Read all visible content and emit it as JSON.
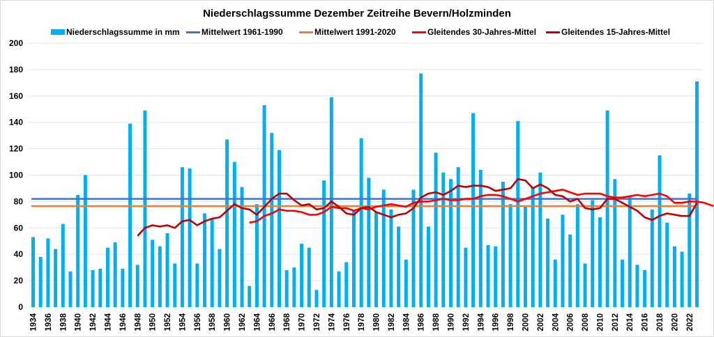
{
  "chart_data": {
    "type": "bar",
    "title": "Niederschlagssumme Dezember Zeitreihe Bevern/Holzminden",
    "xlabel": "",
    "ylabel": "",
    "ylim": [
      0,
      200
    ],
    "yticks": [
      0,
      20,
      40,
      60,
      80,
      100,
      120,
      140,
      160,
      180,
      200
    ],
    "grid": true,
    "legend_position": "top",
    "x": [
      1934,
      1935,
      1936,
      1937,
      1938,
      1939,
      1940,
      1941,
      1942,
      1943,
      1944,
      1945,
      1946,
      1947,
      1948,
      1949,
      1950,
      1951,
      1952,
      1953,
      1954,
      1955,
      1956,
      1957,
      1958,
      1959,
      1960,
      1961,
      1962,
      1963,
      1964,
      1965,
      1966,
      1967,
      1968,
      1969,
      1970,
      1971,
      1972,
      1973,
      1974,
      1975,
      1976,
      1977,
      1978,
      1979,
      1980,
      1981,
      1982,
      1983,
      1984,
      1985,
      1986,
      1987,
      1988,
      1989,
      1990,
      1991,
      1992,
      1993,
      1994,
      1995,
      1996,
      1997,
      1998,
      1999,
      2000,
      2001,
      2002,
      2003,
      2004,
      2005,
      2006,
      2007,
      2008,
      2009,
      2010,
      2011,
      2012,
      2013,
      2014,
      2015,
      2016,
      2017,
      2018,
      2019,
      2020,
      2021,
      2022,
      2023
    ],
    "xtick_labels": [
      "1934",
      "1936",
      "1938",
      "1940",
      "1942",
      "1944",
      "1946",
      "1948",
      "1950",
      "1952",
      "1954",
      "1956",
      "1958",
      "1960",
      "1962",
      "1964",
      "1966",
      "1968",
      "1970",
      "1972",
      "1974",
      "1976",
      "1978",
      "1980",
      "1982",
      "1984",
      "1986",
      "1988",
      "1990",
      "1992",
      "1994",
      "1996",
      "1998",
      "2000",
      "2002",
      "2004",
      "2006",
      "2008",
      "2010",
      "2012",
      "2014",
      "2016",
      "2018",
      "2020",
      "2022"
    ],
    "series": [
      {
        "name": "Niederschlagssumme in mm",
        "type": "bar",
        "color": "#00b0f0",
        "values": [
          53,
          38,
          52,
          44,
          63,
          27,
          85,
          100,
          28,
          29,
          45,
          49,
          29,
          139,
          32,
          149,
          51,
          46,
          56,
          33,
          106,
          105,
          33,
          71,
          67,
          44,
          127,
          110,
          91,
          16,
          78,
          153,
          132,
          119,
          28,
          30,
          48,
          45,
          13,
          96,
          159,
          27,
          34,
          74,
          128,
          98,
          72,
          89,
          74,
          61,
          36,
          89,
          177,
          61,
          117,
          102,
          97,
          106,
          45,
          147,
          104,
          47,
          46,
          95,
          78,
          141,
          76,
          91,
          102,
          67,
          36,
          70,
          55,
          78,
          33,
          81,
          68,
          149,
          97,
          36,
          84,
          32,
          28,
          74,
          115,
          64,
          46,
          42,
          86,
          171
        ]
      },
      {
        "name": "Mittelwert 1961-1990",
        "type": "hline",
        "color": "#4472c4",
        "value": 82
      },
      {
        "name": "Mittelwert 1991-2020",
        "type": "hline",
        "color": "#ed7d31",
        "value": 76.5
      },
      {
        "name": "Gleitendes 30-Jahres-Mittel",
        "type": "line",
        "color": "#ff0000",
        "start_year": 1963,
        "values": [
          64,
          65,
          69,
          71,
          74,
          73,
          73,
          72,
          70,
          70,
          72,
          76,
          75,
          75,
          73,
          75,
          74,
          76,
          77,
          78,
          77,
          76,
          79,
          80,
          80,
          81,
          82,
          81,
          81,
          82,
          82,
          84,
          85,
          85,
          84,
          82,
          80,
          82,
          84,
          86,
          87,
          88,
          89,
          87,
          85,
          86,
          86,
          86,
          84,
          83,
          83,
          84,
          85,
          84,
          85,
          86,
          84,
          79,
          79,
          80,
          80,
          79,
          77,
          76,
          74,
          75,
          77
        ]
      },
      {
        "name": "Gleitendes 15-Jahres-Mittel",
        "type": "line",
        "color": "#c00000",
        "start_year": 1948,
        "values": [
          54,
          60,
          62,
          61,
          62,
          60,
          65,
          66,
          62,
          65,
          67,
          68,
          73,
          78,
          75,
          74,
          70,
          76,
          82,
          86,
          86,
          81,
          77,
          78,
          74,
          75,
          80,
          76,
          71,
          70,
          75,
          76,
          72,
          70,
          68,
          70,
          71,
          75,
          83,
          86,
          87,
          85,
          88,
          92,
          91,
          92,
          92,
          91,
          88,
          89,
          90,
          97,
          96,
          90,
          93,
          90,
          85,
          84,
          80,
          82,
          75,
          74,
          75,
          82,
          82,
          79,
          76,
          73,
          68,
          66,
          69,
          71,
          70,
          69,
          69,
          79
        ]
      }
    ]
  },
  "legend": [
    {
      "label": "Niederschlagssumme in mm",
      "color": "#00b0f0",
      "kind": "box"
    },
    {
      "label": "Mittelwert 1961-1990",
      "color": "#4472c4",
      "kind": "line"
    },
    {
      "label": "Mittelwert 1991-2020",
      "color": "#ed7d31",
      "kind": "line"
    },
    {
      "label": "Gleitendes 30-Jahres-Mittel",
      "color": "#ff0000",
      "kind": "line"
    },
    {
      "label": "Gleitendes 15-Jahres-Mittel",
      "color": "#c00000",
      "kind": "line"
    }
  ]
}
